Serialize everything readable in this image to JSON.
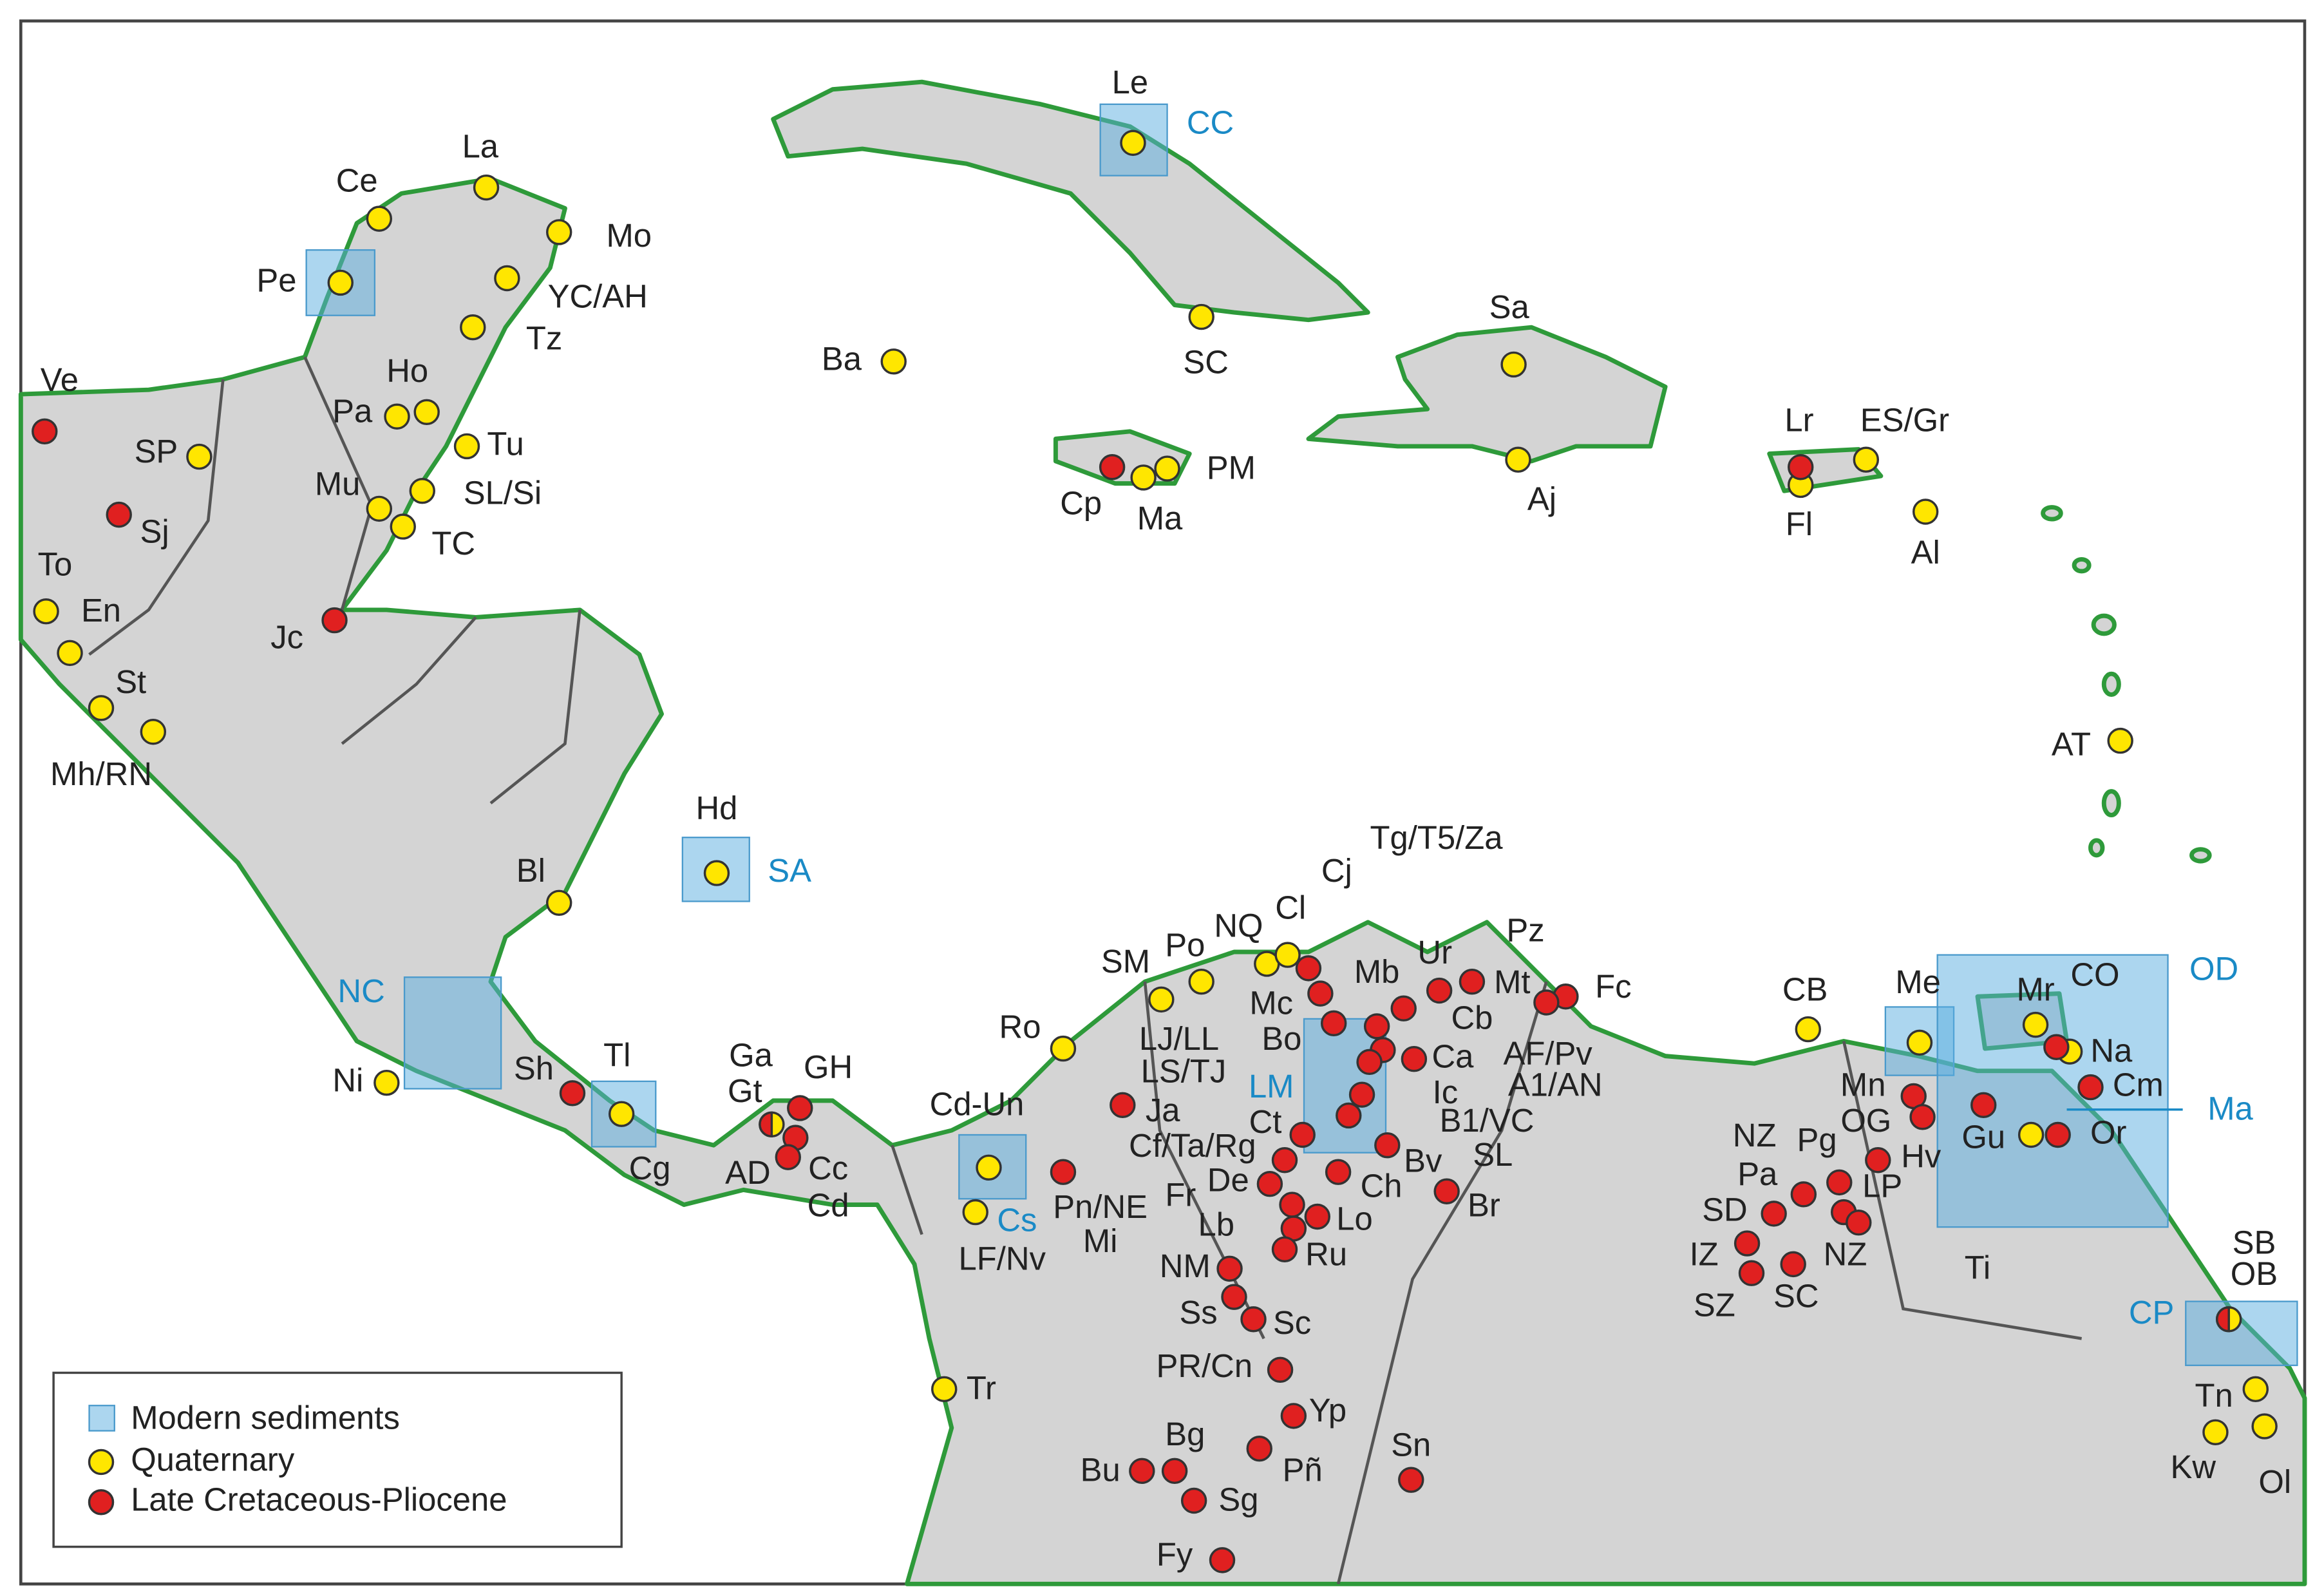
{
  "legend": [
    "Modern sediments",
    "Quaternary",
    "Late Cretaceous-Pliocene"
  ],
  "sediment_regions": [
    "CC",
    "SA",
    "NC",
    "Cs",
    "LM",
    "OD",
    "Ma",
    "CP"
  ],
  "quaternary_sites": [
    "Le",
    "Ce",
    "La",
    "Mo",
    "Pe",
    "YC/AH",
    "Tz",
    "Ho",
    "Pa",
    "SP",
    "Tu",
    "SL/Si",
    "Mu",
    "TC",
    "To",
    "En",
    "St",
    "Mh/RN",
    "Ba",
    "SC",
    "Sa",
    "Ma",
    "PM",
    "Aj",
    "Fl",
    "ES/Gr",
    "Al",
    "AT",
    "Hd",
    "Bl",
    "Ni",
    "Tl",
    "Cd-Un",
    "LF/Nv",
    "Ro",
    "SM",
    "Po",
    "NQ",
    "Cl",
    "Tr",
    "CB",
    "Me",
    "Mr",
    "Na",
    "Ti",
    "Tn",
    "Kw",
    "Ol"
  ],
  "late_cretaceous_pliocene_sites": [
    "Ve",
    "Sj",
    "Jc",
    "Cp",
    "Lr",
    "Sh",
    "GH",
    "Cc",
    "AD",
    "Ja",
    "Pn/NE",
    "Cj",
    "Mc",
    "Bo",
    "Ur",
    "Mt",
    "Fc",
    "Cb",
    "Ca",
    "Ic",
    "B1/VC",
    "Bv",
    "Br",
    "Ch",
    "Ct",
    "Cf/Ta/Rg",
    "De",
    "Fr",
    "Lo",
    "Lb",
    "Ru",
    "NM",
    "Ss",
    "Sc",
    "PR/Cn",
    "Yp",
    "Bg",
    "Pñ",
    "Bu",
    "Sg",
    "Fy",
    "Sn",
    "Mn",
    "OG",
    "Hv",
    "Pg",
    "Pa",
    "LP",
    "SD",
    "IZ",
    "SZ",
    "SC",
    "NZ",
    "CO",
    "Cm",
    "Gu",
    "Or",
    "Pz",
    "AF/Pv",
    "SL",
    "Tg/T5/Za"
  ],
  "mixed_sites": [
    "Ga",
    "SB"
  ],
  "other_labels": [
    "Gt",
    "Cd",
    "Mi",
    "Cg",
    "OB",
    "A1/AN",
    "LJ/LL",
    "LS/TJ",
    "Mb",
    "NZ"
  ]
}
